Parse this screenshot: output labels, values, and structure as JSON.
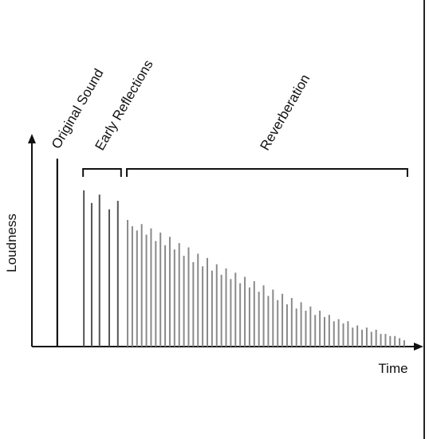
{
  "chart_data": {
    "type": "spike",
    "xlabel": "Time",
    "ylabel": "Loudness",
    "xlim": [
      0,
      100
    ],
    "ylim": [
      0,
      100
    ],
    "series": [
      {
        "name": "Original Sound",
        "color": "#111111",
        "x": [
          6.5
        ],
        "values": [
          89
        ]
      },
      {
        "name": "Early Reflections",
        "color": "#555555",
        "x": [
          13.3,
          15.3,
          17.3,
          19.8,
          22.0
        ],
        "values": [
          74,
          68,
          72,
          65,
          69
        ]
      },
      {
        "name": "Reverberation",
        "color": "#8a8a8a",
        "x": [
          24.5,
          25.7,
          26.9,
          28.1,
          29.3,
          30.5,
          31.7,
          32.9,
          34.1,
          35.3,
          36.5,
          37.7,
          38.9,
          40.1,
          41.3,
          42.5,
          43.7,
          44.9,
          46.1,
          47.3,
          48.5,
          49.7,
          50.9,
          52.1,
          53.3,
          54.5,
          55.7,
          56.9,
          58.1,
          59.3,
          60.5,
          61.7,
          62.9,
          64.1,
          65.3,
          66.5,
          67.7,
          68.9,
          70.1,
          71.3,
          72.5,
          73.7,
          74.9,
          76.1,
          77.3,
          78.5,
          79.7,
          80.9,
          82.1,
          83.3,
          84.5,
          85.7,
          86.9,
          88.1,
          89.3,
          90.5,
          91.7,
          92.9,
          94.1,
          95.3
        ],
        "values": [
          60,
          57,
          55,
          58,
          53,
          56,
          50,
          54,
          48,
          52,
          46,
          49,
          43,
          47,
          40,
          44,
          38,
          42,
          36,
          39,
          34,
          37,
          32,
          35,
          30,
          33,
          28,
          31,
          26,
          29,
          24,
          27,
          22,
          25,
          20,
          23,
          18,
          21,
          17,
          19,
          15,
          17,
          14,
          15,
          12,
          13,
          11,
          12,
          9,
          10,
          8,
          9,
          7,
          8,
          6,
          6,
          5,
          5,
          4,
          3
        ]
      }
    ]
  }
}
